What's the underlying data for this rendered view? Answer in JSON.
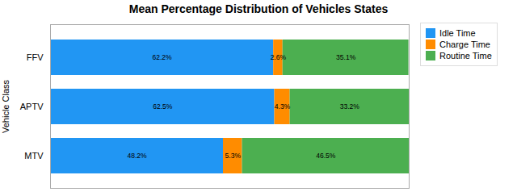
{
  "chart_data": {
    "type": "bar",
    "orientation": "horizontal",
    "stacked": true,
    "title": "Mean Percentage Distribution of Vehicles States",
    "ylabel": "Vehicle Class",
    "categories": [
      "MTV",
      "APTV",
      "FFV"
    ],
    "series": [
      {
        "name": "Idle Time",
        "color": "#2196F3",
        "values": [
          48.2,
          62.5,
          62.2
        ],
        "value_labels": [
          "48.2%",
          "62.5%",
          "62.2%"
        ]
      },
      {
        "name": "Charge Time",
        "color": "#FF8C00",
        "values": [
          5.3,
          4.3,
          2.6
        ],
        "value_labels": [
          "5.3%",
          "4.3%",
          "2.6%"
        ]
      },
      {
        "name": "Routine Time",
        "color": "#4CAF50",
        "values": [
          46.5,
          33.2,
          35.1
        ],
        "value_labels": [
          "46.5%",
          "33.2%",
          "35.1%"
        ]
      }
    ],
    "xlim": [
      0,
      100
    ],
    "xticks": [],
    "tick_labels": "y",
    "data_labels": true,
    "legend": "upper right"
  }
}
